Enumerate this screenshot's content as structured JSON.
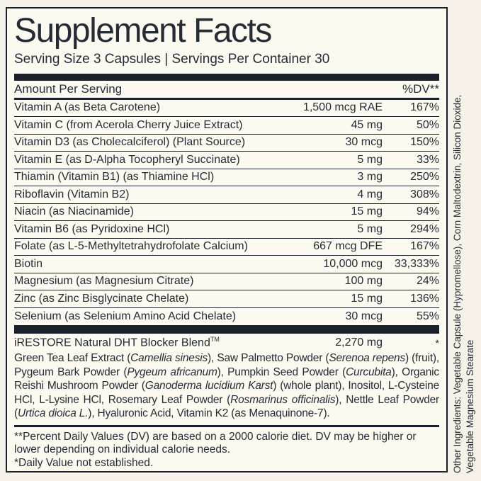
{
  "colors": {
    "ink": "#262c34",
    "bar": "#1b212a",
    "page_bg": "#f7f2e9",
    "panel_bg": "#fcf9f1"
  },
  "panel": {
    "title": "Supplement Facts",
    "serving_line": "Serving Size 3 Capsules | Servings Per Container 30",
    "header": {
      "amount_label": "Amount Per Serving",
      "dv_label": "%DV**"
    },
    "rows": [
      {
        "name": "Vitamin A (as Beta Carotene)",
        "amount": "1,500 mcg RAE",
        "dv": "167%"
      },
      {
        "name": "Vitamin C (from Acerola Cherry Juice Extract)",
        "amount": "45 mg",
        "dv": "50%"
      },
      {
        "name": "Vitamin D3 (as Cholecalciferol) (Plant Source)",
        "amount": "30 mcg",
        "dv": "150%"
      },
      {
        "name": "Vitamin E (as D-Alpha Tocopheryl Succinate)",
        "amount": "5 mg",
        "dv": "33%"
      },
      {
        "name": "Thiamin (Vitamin B1) (as Thiamine HCl)",
        "amount": "3 mg",
        "dv": "250%"
      },
      {
        "name": "Riboflavin (Vitamin B2)",
        "amount": "4 mg",
        "dv": "308%"
      },
      {
        "name": "Niacin (as Niacinamide)",
        "amount": "15 mg",
        "dv": "94%"
      },
      {
        "name": "Vitamin B6 (as Pyridoxine HCl)",
        "amount": "5 mg",
        "dv": "294%"
      },
      {
        "name": "Folate (as L-5-Methyltetrahydrofolate Calcium)",
        "amount": "667 mcg DFE",
        "dv": "167%"
      },
      {
        "name": "Biotin",
        "amount": "10,000 mcg",
        "dv": "33,333%"
      },
      {
        "name": "Magnesium (as Magnesium Citrate)",
        "amount": "100 mg",
        "dv": "24%"
      },
      {
        "name": "Zinc (as Zinc Bisglycinate Chelate)",
        "amount": "15 mg",
        "dv": "136%"
      },
      {
        "name": "Selenium (as Selenium Amino Acid Chelate)",
        "amount": "30 mcg",
        "dv": "55%"
      }
    ],
    "blend": {
      "name": "iRESTORE Natural DHT Blocker Blend",
      "tm": "TM",
      "amount": "2,270 mg",
      "dv": "*",
      "description_segments": [
        {
          "text": "Green Tea Leaf Extract (",
          "italic": false
        },
        {
          "text": "Camellia sinesis",
          "italic": true
        },
        {
          "text": "), Saw Palmetto Powder (",
          "italic": false
        },
        {
          "text": "Serenoa repens",
          "italic": true
        },
        {
          "text": ") (fruit), Pygeum Bark Powder (",
          "italic": false
        },
        {
          "text": "Pygeum africanum",
          "italic": true
        },
        {
          "text": "), Pumpkin Seed Powder (",
          "italic": false
        },
        {
          "text": "Curcubita",
          "italic": true
        },
        {
          "text": "), Organic Reishi Mushroom Powder (",
          "italic": false
        },
        {
          "text": "Ganoderma lucidium Karst",
          "italic": true
        },
        {
          "text": ") (whole plant), Inositol, L-Cysteine HCl, L-Lysine HCl, Rosemary Leaf Powder (",
          "italic": false
        },
        {
          "text": "Rosmarinus officinalis",
          "italic": true
        },
        {
          "text": "), Nettle Leaf Powder (",
          "italic": false
        },
        {
          "text": "Urtica dioica L.",
          "italic": true
        },
        {
          "text": "), Hyaluronic Acid, Vitamin K2 (as Menaquinone-7).",
          "italic": false
        }
      ]
    },
    "footnotes": {
      "dv_note": "**Percent Daily Values (DV) are based on a 2000 calorie diet. DV may be higher or lower depending on individual calorie needs.",
      "daily_value_note": "*Daily Value not established."
    }
  },
  "side_text": {
    "line1": "Other Ingredients: Vegetable Capsule (Hypromellose), Corn Maltodextrin, Silicon Dioxide,",
    "line2": "Vegetable Magnesium Stearate"
  }
}
